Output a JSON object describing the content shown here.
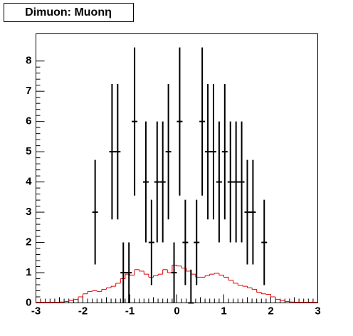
{
  "chart_data": {
    "type": "histogram",
    "title": "Dimuon: Muonη",
    "xlim": [
      -3,
      3
    ],
    "ylim": [
      0,
      8.9
    ],
    "xticks": [
      -3,
      -2,
      -1,
      0,
      1,
      2,
      3
    ],
    "yticks": [
      0,
      1,
      2,
      3,
      4,
      5,
      6,
      7,
      8
    ],
    "color": "#e00000",
    "bins": [
      -3,
      -2.9,
      -2.8,
      -2.7,
      -2.6,
      -2.5,
      -2.4,
      -2.3,
      -2.2,
      -2.1,
      -2,
      -1.9,
      -1.8,
      -1.7,
      -1.6,
      -1.5,
      -1.4,
      -1.3,
      -1.2,
      -1.1,
      -1,
      -0.9,
      -0.8,
      -0.7,
      -0.6,
      -0.5,
      -0.4,
      -0.3,
      -0.2,
      -0.1,
      0,
      0.1,
      0.2,
      0.3,
      0.4,
      0.5,
      0.6,
      0.7,
      0.8,
      0.9,
      1,
      1.1,
      1.2,
      1.3,
      1.4,
      1.5,
      1.6,
      1.7,
      1.8,
      1.9,
      2,
      2.1,
      2.2,
      2.3,
      2.4,
      2.5,
      2.6,
      2.7,
      2.8,
      2.9,
      3
    ],
    "values": [
      0.02,
      0.02,
      0.02,
      0.02,
      0.02,
      0.03,
      0.05,
      0.08,
      0.12,
      0.2,
      0.3,
      0.38,
      0.4,
      0.38,
      0.45,
      0.5,
      0.55,
      0.65,
      0.8,
      0.95,
      0.92,
      1.1,
      1.05,
      0.95,
      0.85,
      0.9,
      0.95,
      1.1,
      1.0,
      1.25,
      1.22,
      1.15,
      1.05,
      0.95,
      0.85,
      0.85,
      0.9,
      0.95,
      0.98,
      0.92,
      0.85,
      0.75,
      0.65,
      0.58,
      0.55,
      0.5,
      0.45,
      0.35,
      0.3,
      0.28,
      0.2,
      0.12,
      0.08,
      0.05,
      0.03,
      0.02,
      0.02,
      0.02,
      0.02,
      0.02
    ],
    "points": {
      "color": "#000000",
      "x": [
        -1.74,
        -1.38,
        -1.26,
        -1.14,
        -1.02,
        -0.9,
        -0.66,
        -0.54,
        -0.42,
        -0.3,
        -0.18,
        -0.06,
        0.06,
        0.18,
        0.3,
        0.42,
        0.54,
        0.66,
        0.78,
        0.9,
        1.02,
        1.14,
        1.26,
        1.38,
        1.5,
        1.62,
        1.86
      ],
      "values": [
        3,
        5,
        5,
        1,
        1,
        6,
        4,
        2,
        4,
        4,
        5,
        1,
        6,
        2,
        0,
        2,
        6,
        5,
        5,
        4,
        5,
        4,
        4,
        4,
        3,
        3,
        2
      ],
      "errors": [
        1.73,
        2.24,
        2.24,
        1,
        1,
        2.45,
        2,
        1.41,
        2,
        2,
        2.24,
        1,
        2.45,
        1.41,
        1.1,
        1.41,
        2.45,
        2.24,
        2.24,
        2,
        2.24,
        2,
        2,
        2,
        1.73,
        1.73,
        1.41
      ]
    }
  }
}
